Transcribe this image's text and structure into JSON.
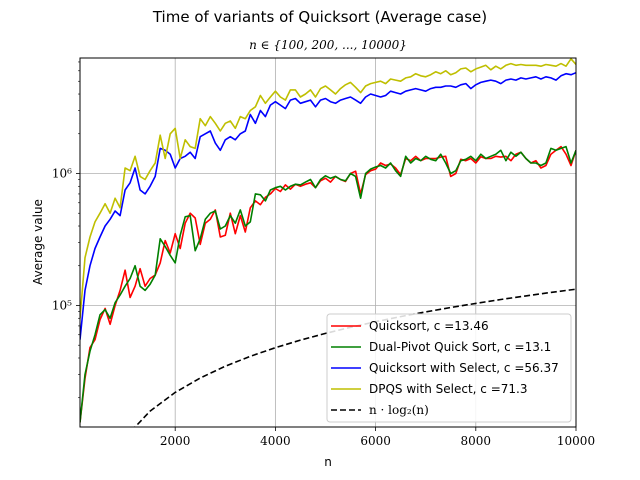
{
  "chart_data": {
    "type": "line",
    "title": "Time of variants of Quicksort (Average case)",
    "subtitle": "n ∈ {100, 200, ..., 10000}",
    "xlabel": "n",
    "ylabel": "Average value",
    "xlim": [
      100,
      10000
    ],
    "ylim": [
      12000,
      7500000
    ],
    "yscale": "log",
    "grid": true,
    "legend_position": "lower right",
    "x_ticks": [
      2000,
      4000,
      6000,
      8000,
      10000
    ],
    "x_tick_labels": [
      "2000",
      "4000",
      "6000",
      "8000",
      "10000"
    ],
    "y_ticks": [
      100000,
      1000000
    ],
    "y_tick_labels": [
      "10⁵",
      "10⁶"
    ],
    "series": [
      {
        "name": "Quicksort, c =13.46",
        "color": "#ff0000",
        "style": "solid",
        "x": [
          100,
          200,
          300,
          400,
          500,
          600,
          700,
          800,
          900,
          1000,
          1100,
          1200,
          1300,
          1400,
          1500,
          1600,
          1700,
          1800,
          1900,
          2000,
          2100,
          2200,
          2300,
          2400,
          2500,
          2600,
          2700,
          2800,
          2900,
          3000,
          3100,
          3200,
          3300,
          3400,
          3500,
          3600,
          3700,
          3800,
          3900,
          4000,
          4100,
          4200,
          4300,
          4400,
          4500,
          4600,
          4700,
          4800,
          4900,
          5000,
          5100,
          5200,
          5300,
          5400,
          5500,
          5600,
          5700,
          5800,
          5900,
          6000,
          6100,
          6200,
          6300,
          6400,
          6500,
          6600,
          6700,
          6800,
          6900,
          7000,
          7100,
          7200,
          7300,
          7400,
          7500,
          7600,
          7700,
          7800,
          7900,
          8000,
          8100,
          8200,
          8300,
          8400,
          8500,
          8600,
          8700,
          8800,
          8900,
          9000,
          9100,
          9200,
          9300,
          9400,
          9500,
          9600,
          9700,
          9800,
          9900,
          10000
        ],
        "values": [
          13000,
          28000,
          48000,
          55000,
          78000,
          95000,
          72000,
          100000,
          130000,
          185000,
          115000,
          140000,
          190000,
          140000,
          160000,
          170000,
          210000,
          310000,
          250000,
          350000,
          270000,
          420000,
          500000,
          460000,
          290000,
          420000,
          450000,
          530000,
          330000,
          340000,
          500000,
          350000,
          480000,
          360000,
          550000,
          620000,
          580000,
          660000,
          700000,
          770000,
          730000,
          820000,
          760000,
          830000,
          800000,
          830000,
          850000,
          780000,
          880000,
          920000,
          860000,
          950000,
          900000,
          870000,
          1000000,
          1040000,
          700000,
          980000,
          1050000,
          1080000,
          1200000,
          1150000,
          1180000,
          1100000,
          980000,
          1300000,
          1250000,
          1350000,
          1250000,
          1300000,
          1300000,
          1300000,
          1330000,
          1350000,
          950000,
          1000000,
          1280000,
          1250000,
          1300000,
          1200000,
          1340000,
          1300000,
          1300000,
          1350000,
          1330000,
          1350000,
          1250000,
          1400000,
          1450000,
          1300000,
          1200000,
          1250000,
          1100000,
          1150000,
          1400000,
          1500000,
          1600000,
          1400000,
          1150000,
          1500000
        ]
      },
      {
        "name": "Dual-Pivot Quick Sort, c =13.1",
        "color": "#008000",
        "style": "solid",
        "x": [
          100,
          200,
          300,
          400,
          500,
          600,
          700,
          800,
          900,
          1000,
          1100,
          1200,
          1300,
          1400,
          1500,
          1600,
          1700,
          1800,
          1900,
          2000,
          2100,
          2200,
          2300,
          2400,
          2500,
          2600,
          2700,
          2800,
          2900,
          3000,
          3100,
          3200,
          3300,
          3400,
          3500,
          3600,
          3700,
          3800,
          3900,
          4000,
          4100,
          4200,
          4300,
          4400,
          4500,
          4600,
          4700,
          4800,
          4900,
          5000,
          5100,
          5200,
          5300,
          5400,
          5500,
          5600,
          5700,
          5800,
          5900,
          6000,
          6100,
          6200,
          6300,
          6400,
          6500,
          6600,
          6700,
          6800,
          6900,
          7000,
          7100,
          7200,
          7300,
          7400,
          7500,
          7600,
          7700,
          7800,
          7900,
          8000,
          8100,
          8200,
          8300,
          8400,
          8500,
          8600,
          8700,
          8800,
          8900,
          9000,
          9100,
          9200,
          9300,
          9400,
          9500,
          9600,
          9700,
          9800,
          9900,
          10000
        ],
        "values": [
          13000,
          30000,
          45000,
          60000,
          85000,
          93000,
          80000,
          105000,
          120000,
          140000,
          160000,
          200000,
          140000,
          130000,
          145000,
          170000,
          320000,
          280000,
          240000,
          210000,
          340000,
          470000,
          480000,
          260000,
          320000,
          450000,
          500000,
          520000,
          380000,
          400000,
          480000,
          420000,
          530000,
          400000,
          430000,
          700000,
          690000,
          620000,
          750000,
          780000,
          800000,
          750000,
          800000,
          830000,
          820000,
          860000,
          900000,
          780000,
          900000,
          960000,
          920000,
          950000,
          900000,
          880000,
          1000000,
          950000,
          650000,
          1000000,
          1080000,
          1120000,
          1150000,
          1100000,
          1200000,
          1050000,
          950000,
          1350000,
          1200000,
          1300000,
          1250000,
          1350000,
          1280000,
          1250000,
          1400000,
          1200000,
          1000000,
          1050000,
          1250000,
          1280000,
          1350000,
          1250000,
          1400000,
          1300000,
          1350000,
          1400000,
          1500000,
          1250000,
          1450000,
          1350000,
          1450000,
          1300000,
          1200000,
          1200000,
          1150000,
          1200000,
          1550000,
          1500000,
          1550000,
          1600000,
          1200000,
          1500000
        ]
      },
      {
        "name": "Quicksort with Select, c =56.37",
        "color": "#0000ff",
        "style": "solid",
        "x": [
          100,
          200,
          300,
          400,
          500,
          600,
          700,
          800,
          900,
          1000,
          1100,
          1200,
          1300,
          1400,
          1500,
          1600,
          1700,
          1800,
          1900,
          2000,
          2100,
          2200,
          2300,
          2400,
          2500,
          2600,
          2700,
          2800,
          2900,
          3000,
          3100,
          3200,
          3300,
          3400,
          3500,
          3600,
          3700,
          3800,
          3900,
          4000,
          4100,
          4200,
          4300,
          4400,
          4500,
          4600,
          4700,
          4800,
          4900,
          5000,
          5100,
          5200,
          5300,
          5400,
          5500,
          5600,
          5700,
          5800,
          5900,
          6000,
          6100,
          6200,
          6300,
          6400,
          6500,
          6600,
          6700,
          6800,
          6900,
          7000,
          7100,
          7200,
          7300,
          7400,
          7500,
          7600,
          7700,
          7800,
          7900,
          8000,
          8100,
          8200,
          8300,
          8400,
          8500,
          8600,
          8700,
          8800,
          8900,
          9000,
          9100,
          9200,
          9300,
          9400,
          9500,
          9600,
          9700,
          9800,
          9900,
          10000
        ],
        "values": [
          55000,
          130000,
          200000,
          270000,
          330000,
          400000,
          450000,
          520000,
          480000,
          750000,
          850000,
          1100000,
          750000,
          700000,
          800000,
          950000,
          1550000,
          1500000,
          1400000,
          1100000,
          1300000,
          1350000,
          1450000,
          1300000,
          1900000,
          2000000,
          2100000,
          1700000,
          1500000,
          1800000,
          1900000,
          1800000,
          2000000,
          2100000,
          2800000,
          2400000,
          3000000,
          2700000,
          3300000,
          3500000,
          3300000,
          3100000,
          3600000,
          3700000,
          3400000,
          3500000,
          3600000,
          3200000,
          3600000,
          3700000,
          3500000,
          3400000,
          3600000,
          3700000,
          3800000,
          3600000,
          3400000,
          3800000,
          4000000,
          3900000,
          3800000,
          3900000,
          4200000,
          4100000,
          4000000,
          4200000,
          4300000,
          4400000,
          4300000,
          4200000,
          4400000,
          4500000,
          4500000,
          4600000,
          4600000,
          4500000,
          4700000,
          4800000,
          4400000,
          4700000,
          4900000,
          5000000,
          5100000,
          5000000,
          4800000,
          5100000,
          5200000,
          5100000,
          5300000,
          5200000,
          5300000,
          5400000,
          5200000,
          5400000,
          5300000,
          5100000,
          5500000,
          5700000,
          5600000,
          5800000
        ]
      },
      {
        "name": "DPQS with Select, c =71.3",
        "color": "#bfbf00",
        "style": "solid",
        "x": [
          100,
          200,
          300,
          400,
          500,
          600,
          700,
          800,
          900,
          1000,
          1100,
          1200,
          1300,
          1400,
          1500,
          1600,
          1700,
          1800,
          1900,
          2000,
          2100,
          2200,
          2300,
          2400,
          2500,
          2600,
          2700,
          2800,
          2900,
          3000,
          3100,
          3200,
          3300,
          3400,
          3500,
          3600,
          3700,
          3800,
          3900,
          4000,
          4100,
          4200,
          4300,
          4400,
          4500,
          4600,
          4700,
          4800,
          4900,
          5000,
          5100,
          5200,
          5300,
          5400,
          5500,
          5600,
          5700,
          5800,
          5900,
          6000,
          6100,
          6200,
          6300,
          6400,
          6500,
          6600,
          6700,
          6800,
          6900,
          7000,
          7100,
          7200,
          7300,
          7400,
          7500,
          7600,
          7700,
          7800,
          7900,
          8000,
          8100,
          8200,
          8300,
          8400,
          8500,
          8600,
          8700,
          8800,
          8900,
          9000,
          9100,
          9200,
          9300,
          9400,
          9500,
          9600,
          9700,
          9800,
          9900,
          10000
        ],
        "values": [
          80000,
          230000,
          330000,
          430000,
          500000,
          590000,
          500000,
          650000,
          550000,
          1100000,
          1050000,
          1350000,
          950000,
          900000,
          1050000,
          1200000,
          1950000,
          1300000,
          2000000,
          2200000,
          1300000,
          1800000,
          1600000,
          1550000,
          2600000,
          2300000,
          2700000,
          2400000,
          2100000,
          2400000,
          2500000,
          2200000,
          2700000,
          2600000,
          3000000,
          3200000,
          3900000,
          3400000,
          3800000,
          4200000,
          3800000,
          3600000,
          4300000,
          4300000,
          3800000,
          4000000,
          4300000,
          3800000,
          4400000,
          4600000,
          4300000,
          4000000,
          4400000,
          4700000,
          4900000,
          4500000,
          4100000,
          4600000,
          4800000,
          4900000,
          5000000,
          4800000,
          5200000,
          5100000,
          5000000,
          5300000,
          5400000,
          5700000,
          5500000,
          5400000,
          5600000,
          5900000,
          5700000,
          6000000,
          5600000,
          5800000,
          6200000,
          6300000,
          5900000,
          6200000,
          6400000,
          6600000,
          6100000,
          6500000,
          6200000,
          6600000,
          6800000,
          6600000,
          6700000,
          6600000,
          6600000,
          6600000,
          6500000,
          6700000,
          6600000,
          6500000,
          6800000,
          6500000,
          7400000,
          6700000
        ]
      },
      {
        "name": "n · log₂(n)",
        "color": "#000000",
        "style": "dashed",
        "x": [
          1000,
          1500,
          2000,
          2500,
          3000,
          3500,
          4000,
          4500,
          5000,
          5500,
          6000,
          6500,
          7000,
          7500,
          8000,
          8500,
          9000,
          9500,
          10000
        ],
        "values": [
          9966,
          15826,
          21932,
          28219,
          34652,
          41207,
          47863,
          54610,
          61439,
          68338,
          75304,
          82333,
          89412,
          96540,
          103726,
          110948,
          118222,
          125543,
          132877
        ]
      }
    ]
  }
}
